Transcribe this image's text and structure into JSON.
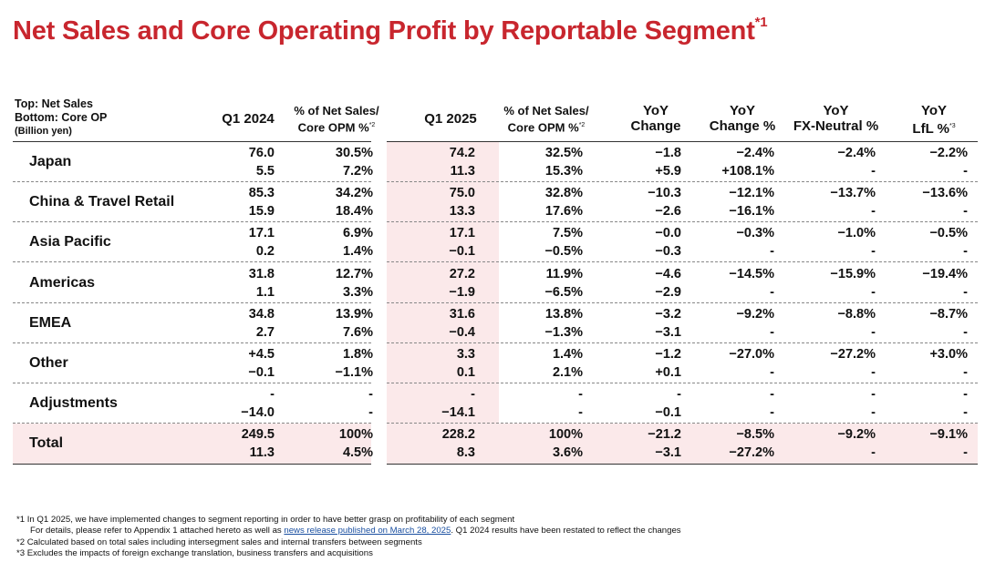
{
  "title": "Net Sales and Core Operating Profit by Reportable Segment",
  "title_note": "*1",
  "header": {
    "label_line1": "Top: Net Sales",
    "label_line2": "Bottom: Core OP",
    "label_line3": "(Billion yen)",
    "q1_2024": "Q1 2024",
    "pct_a_line1": "% of Net Sales/",
    "pct_a_line2": "Core OPM %",
    "pct_note": "*2",
    "q1_2025": "Q1 2025",
    "pct_b_line1": "% of Net Sales/",
    "pct_b_line2": "Core OPM %",
    "yoy_change_line1": "YoY",
    "yoy_change_line2": "Change",
    "yoy_pct_line1": "YoY",
    "yoy_pct_line2": "Change %",
    "yoy_fx_line1": "YoY",
    "yoy_fx_line2": "FX-Neutral %",
    "yoy_lfl_line1": "YoY",
    "yoy_lfl_line2": "LfL %",
    "lfl_note": "*3"
  },
  "rows": [
    {
      "label": "Japan",
      "top": [
        "76.0",
        "30.5%",
        "74.2",
        "32.5%",
        "−1.8",
        "−2.4%",
        "−2.4%",
        "−2.2%"
      ],
      "bottom": [
        "5.5",
        "7.2%",
        "11.3",
        "15.3%",
        "+5.9",
        "+108.1%",
        "-",
        "-"
      ]
    },
    {
      "label": "China & Travel Retail",
      "top": [
        "85.3",
        "34.2%",
        "75.0",
        "32.8%",
        "−10.3",
        "−12.1%",
        "−13.7%",
        "−13.6%"
      ],
      "bottom": [
        "15.9",
        "18.4%",
        "13.3",
        "17.6%",
        "−2.6",
        "−16.1%",
        "-",
        "-"
      ]
    },
    {
      "label": "Asia Pacific",
      "top": [
        "17.1",
        "6.9%",
        "17.1",
        "7.5%",
        "−0.0",
        "−0.3%",
        "−1.0%",
        "−0.5%"
      ],
      "bottom": [
        "0.2",
        "1.4%",
        "−0.1",
        "−0.5%",
        "−0.3",
        "-",
        "-",
        "-"
      ]
    },
    {
      "label": "Americas",
      "top": [
        "31.8",
        "12.7%",
        "27.2",
        "11.9%",
        "−4.6",
        "−14.5%",
        "−15.9%",
        "−19.4%"
      ],
      "bottom": [
        "1.1",
        "3.3%",
        "−1.9",
        "−6.5%",
        "−2.9",
        "-",
        "-",
        "-"
      ]
    },
    {
      "label": "EMEA",
      "top": [
        "34.8",
        "13.9%",
        "31.6",
        "13.8%",
        "−3.2",
        "−9.2%",
        "−8.8%",
        "−8.7%"
      ],
      "bottom": [
        "2.7",
        "7.6%",
        "−0.4",
        "−1.3%",
        "−3.1",
        "-",
        "-",
        "-"
      ]
    },
    {
      "label": "Other",
      "top": [
        "+4.5",
        "1.8%",
        "3.3",
        "1.4%",
        "−1.2",
        "−27.0%",
        "−27.2%",
        "+3.0%"
      ],
      "bottom": [
        "−0.1",
        "−1.1%",
        "0.1",
        "2.1%",
        "+0.1",
        "-",
        "-",
        "-"
      ]
    },
    {
      "label": "Adjustments",
      "top": [
        "-",
        "-",
        "-",
        "-",
        "-",
        "-",
        "-",
        "-"
      ],
      "bottom": [
        "−14.0",
        "-",
        "−14.1",
        "-",
        "−0.1",
        "-",
        "-",
        "-"
      ]
    },
    {
      "label": "Total",
      "top": [
        "249.5",
        "100%",
        "228.2",
        "100%",
        "−21.2",
        "−8.5%",
        "−9.2%",
        "−9.1%"
      ],
      "bottom": [
        "11.3",
        "4.5%",
        "8.3",
        "3.6%",
        "−3.1",
        "−27.2%",
        "-",
        "-"
      ]
    }
  ],
  "footnotes": {
    "n1": "*1 In Q1 2025, we have implemented changes to segment reporting in order to have better grasp on profitability of each segment",
    "n1b_pre": "For details, please refer to Appendix 1 attached hereto as well as ",
    "n1b_link": "news release published on March 28, 2025",
    "n1b_post": ". Q1 2024 results have been restated to reflect the changes",
    "n2": "*2 Calculated based on total sales including intersegment sales and internal transfers between segments",
    "n3": "*3 Excludes the impacts of foreign exchange translation, business transfers and acquisitions"
  }
}
